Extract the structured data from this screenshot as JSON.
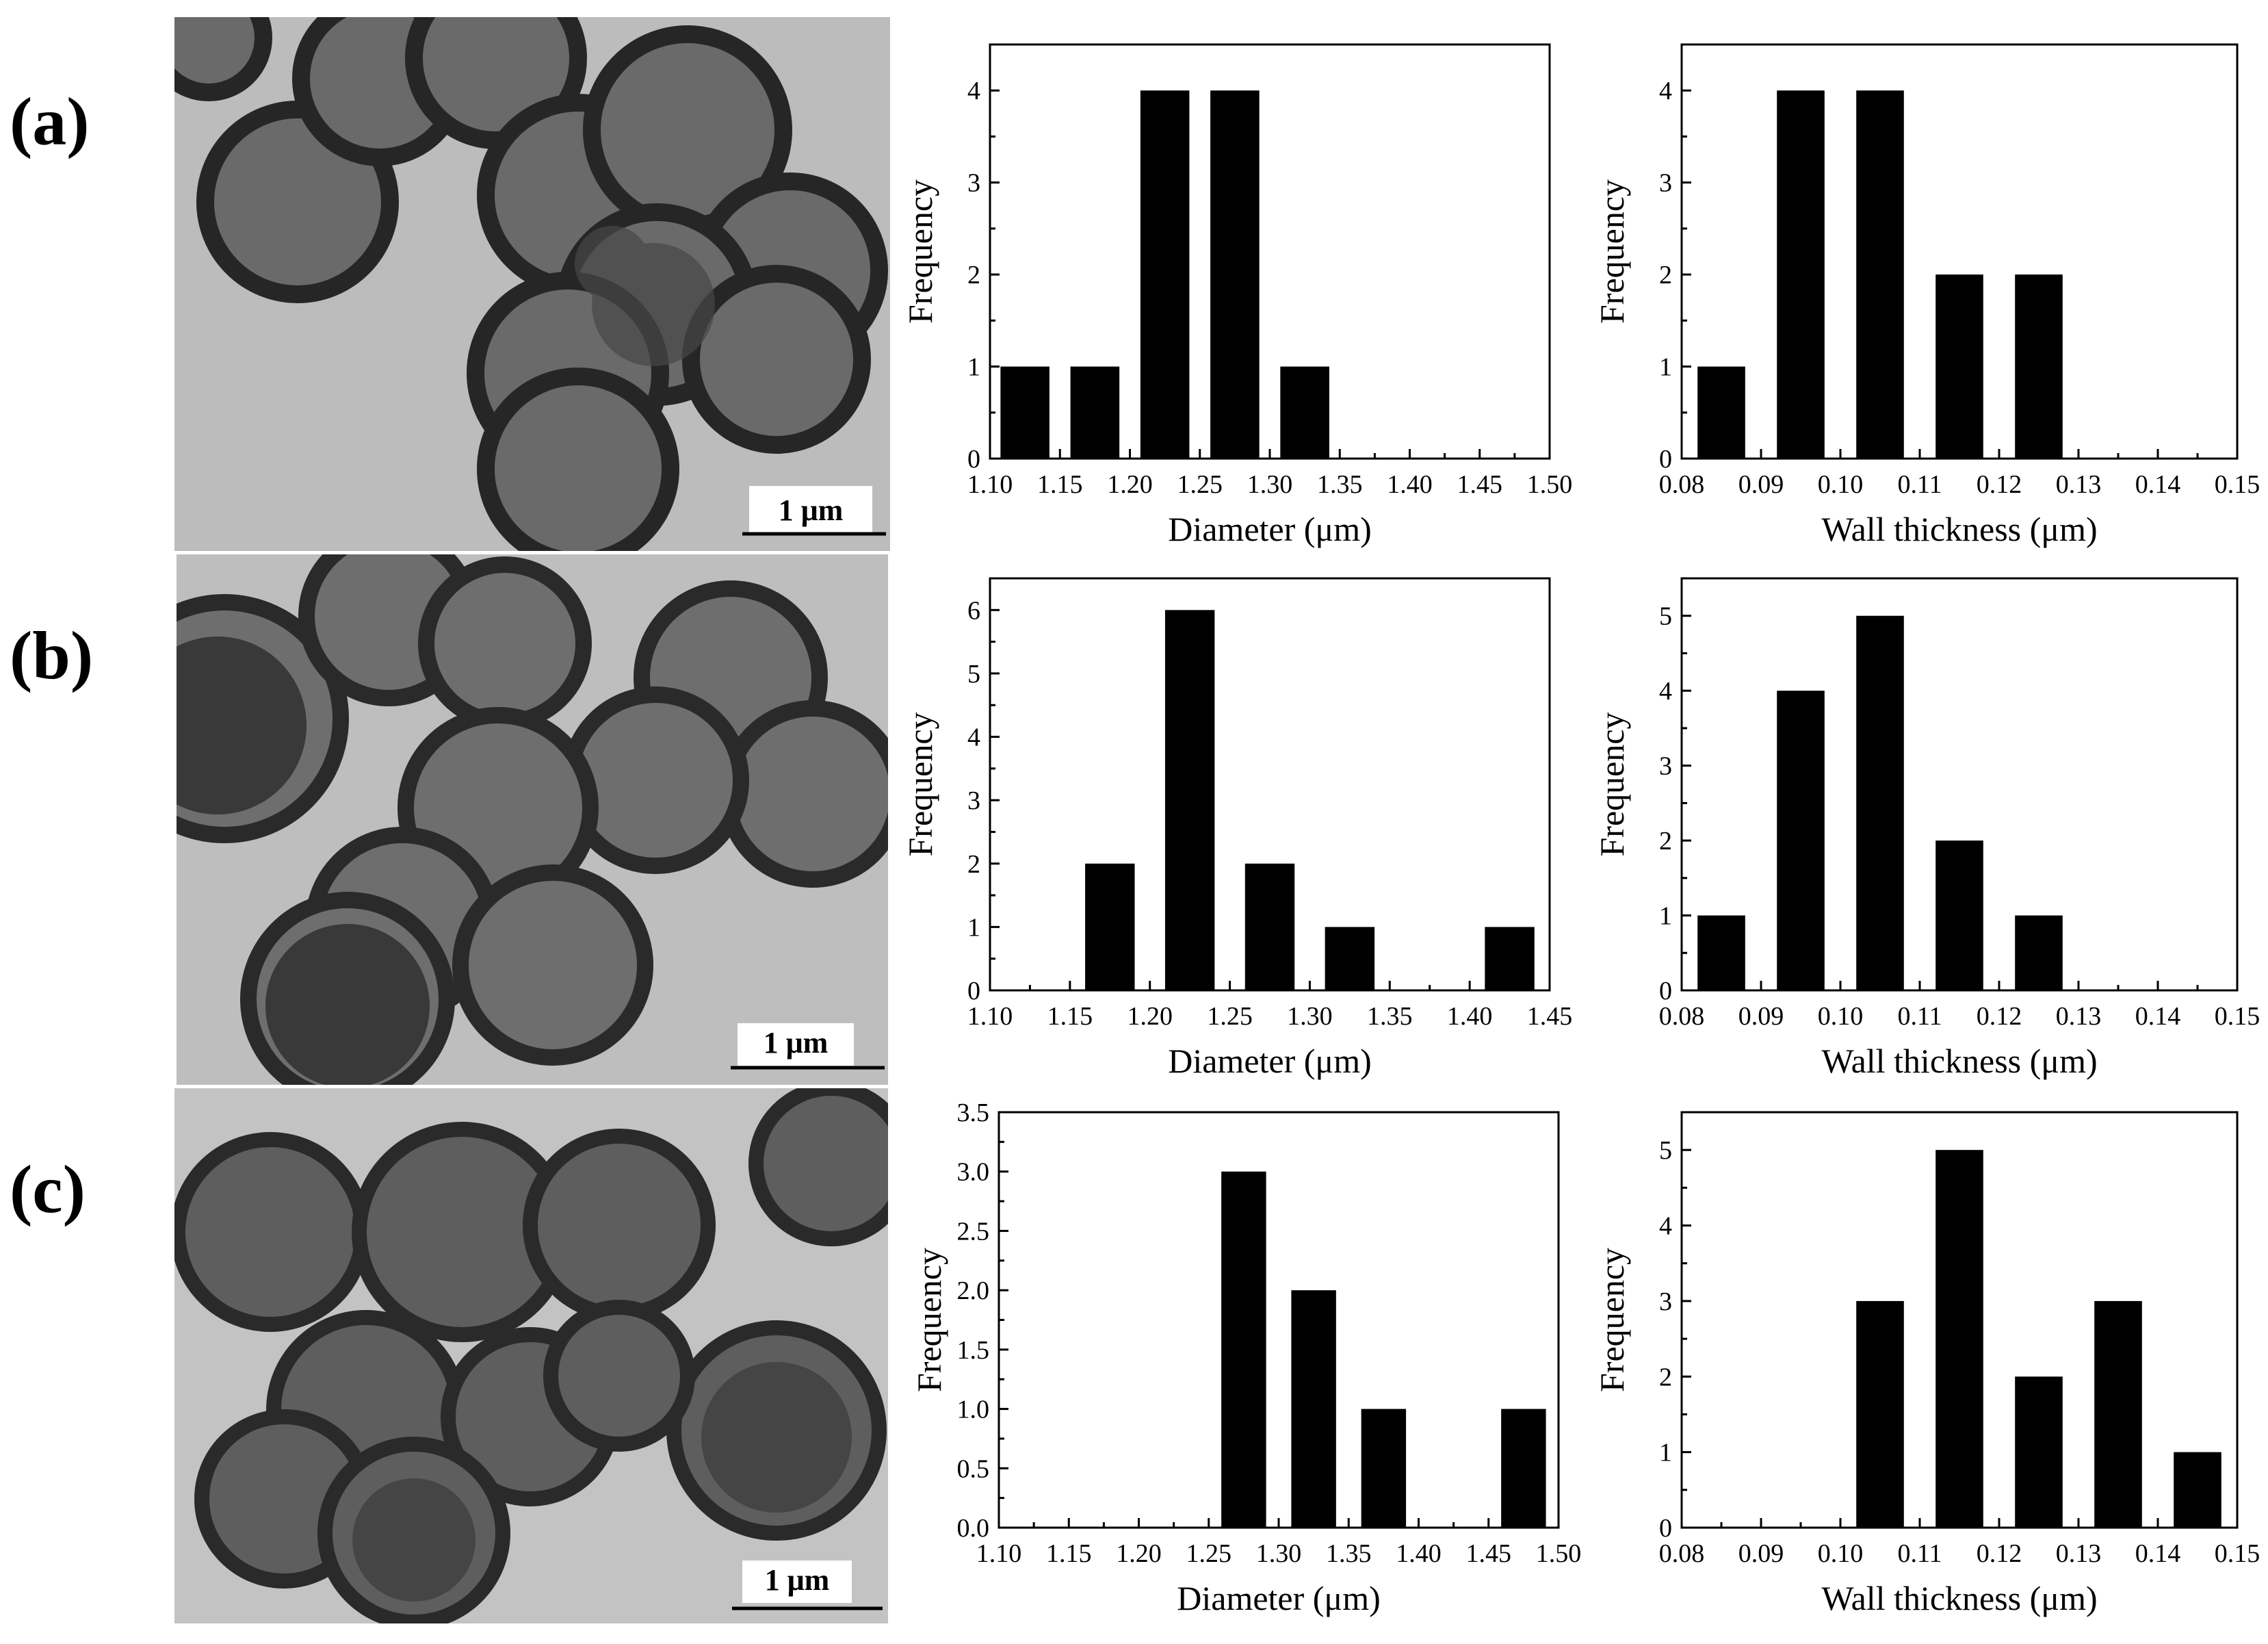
{
  "rows": [
    {
      "label": "(a)",
      "scale_label": "1 μm"
    },
    {
      "label": "(b)",
      "scale_label": "1 μm"
    },
    {
      "label": "(c)",
      "scale_label": "1 μm"
    }
  ],
  "chart_data": [
    {
      "type": "bar",
      "row": "a",
      "xlabel": "Diameter (μm)",
      "ylabel": "Frequency",
      "xlim": [
        1.1,
        1.5
      ],
      "ylim": [
        0,
        4.5
      ],
      "xticks": [
        "1.10",
        "1.15",
        "1.20",
        "1.25",
        "1.30",
        "1.35",
        "1.40",
        "1.45",
        "1.50"
      ],
      "yticks": [
        "0",
        "1",
        "2",
        "3",
        "4"
      ],
      "x": [
        1.125,
        1.175,
        1.225,
        1.275,
        1.325
      ],
      "values": [
        1,
        1,
        4,
        4,
        1
      ],
      "bar_width": 0.035
    },
    {
      "type": "bar",
      "row": "a",
      "xlabel": "Wall thickness (μm)",
      "ylabel": "Frequency",
      "xlim": [
        0.08,
        0.15
      ],
      "ylim": [
        0,
        4.5
      ],
      "xticks": [
        "0.08",
        "0.09",
        "0.10",
        "0.11",
        "0.12",
        "0.13",
        "0.14",
        "0.15"
      ],
      "yticks": [
        "0",
        "1",
        "2",
        "3",
        "4"
      ],
      "x": [
        0.085,
        0.095,
        0.105,
        0.115,
        0.125
      ],
      "values": [
        1,
        4,
        4,
        2,
        2
      ],
      "bar_width": 0.006
    },
    {
      "type": "bar",
      "row": "b",
      "xlabel": "Diameter (μm)",
      "ylabel": "Frequency",
      "xlim": [
        1.1,
        1.45
      ],
      "ylim": [
        0,
        6.5
      ],
      "xticks": [
        "1.10",
        "1.15",
        "1.20",
        "1.25",
        "1.30",
        "1.35",
        "1.40",
        "1.45"
      ],
      "yticks": [
        "0",
        "1",
        "2",
        "3",
        "4",
        "5",
        "6"
      ],
      "x": [
        1.175,
        1.225,
        1.275,
        1.325,
        1.425
      ],
      "values": [
        2,
        6,
        2,
        1,
        1
      ],
      "bar_width": 0.031
    },
    {
      "type": "bar",
      "row": "b",
      "xlabel": "Wall thickness (μm)",
      "ylabel": "Frequency",
      "xlim": [
        0.08,
        0.15
      ],
      "ylim": [
        0,
        5.5
      ],
      "xticks": [
        "0.08",
        "0.09",
        "0.10",
        "0.11",
        "0.12",
        "0.13",
        "0.14",
        "0.15"
      ],
      "yticks": [
        "0",
        "1",
        "2",
        "3",
        "4",
        "5"
      ],
      "x": [
        0.085,
        0.095,
        0.105,
        0.115,
        0.125
      ],
      "values": [
        1,
        4,
        5,
        2,
        1
      ],
      "bar_width": 0.006
    },
    {
      "type": "bar",
      "row": "c",
      "xlabel": "Diameter (μm)",
      "ylabel": "Frequency",
      "xlim": [
        1.1,
        1.5
      ],
      "ylim": [
        0,
        3.5
      ],
      "xticks": [
        "1.10",
        "1.15",
        "1.20",
        "1.25",
        "1.30",
        "1.35",
        "1.40",
        "1.45",
        "1.50"
      ],
      "yticks": [
        "0.0",
        "0.5",
        "1.0",
        "1.5",
        "2.0",
        "2.5",
        "3.0",
        "3.5"
      ],
      "x": [
        1.275,
        1.325,
        1.375,
        1.475
      ],
      "values": [
        3,
        2,
        1,
        1
      ],
      "bar_width": 0.032
    },
    {
      "type": "bar",
      "row": "c",
      "xlabel": "Wall thickness (μm)",
      "ylabel": "Frequency",
      "xlim": [
        0.08,
        0.15
      ],
      "ylim": [
        0,
        5.5
      ],
      "xticks": [
        "0.08",
        "0.09",
        "0.10",
        "0.11",
        "0.12",
        "0.13",
        "0.14",
        "0.15"
      ],
      "yticks": [
        "0",
        "1",
        "2",
        "3",
        "4",
        "5"
      ],
      "x": [
        0.105,
        0.115,
        0.125,
        0.135,
        0.145
      ],
      "values": [
        3,
        5,
        2,
        3,
        1
      ],
      "bar_width": 0.006
    }
  ]
}
